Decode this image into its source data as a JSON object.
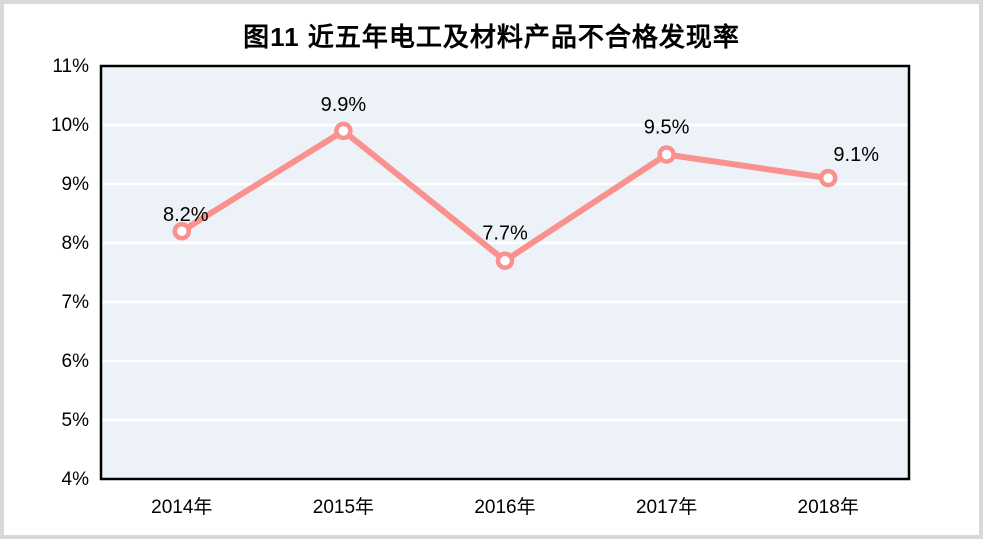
{
  "figure": {
    "outer_border_color": "#d9d9d9",
    "background": "#ffffff"
  },
  "chart_data": {
    "type": "line",
    "title": "图11 近五年电工及材料产品不合格发现率",
    "categories": [
      "2014年",
      "2015年",
      "2016年",
      "2017年",
      "2018年"
    ],
    "series": [
      {
        "name": "不合格发现率",
        "values": [
          8.2,
          9.9,
          7.7,
          9.5,
          9.1
        ],
        "data_labels": [
          "8.2%",
          "9.9%",
          "7.7%",
          "9.5%",
          "9.1%"
        ]
      }
    ],
    "xlabel": "",
    "ylabel": "",
    "ylim": [
      4,
      11
    ],
    "y_tick_step": 1,
    "y_tick_labels": [
      "4%",
      "5%",
      "6%",
      "7%",
      "8%",
      "9%",
      "10%",
      "11%"
    ],
    "grid": "horizontal",
    "legend": "none",
    "colors": {
      "line": "#F9928E",
      "marker_fill": "#FFFFFF",
      "marker_stroke": "#F9928E",
      "plot_background": "#EDF2F8",
      "gridline": "#FFFFFF",
      "plot_border": "#000000",
      "text": "#000000"
    }
  }
}
